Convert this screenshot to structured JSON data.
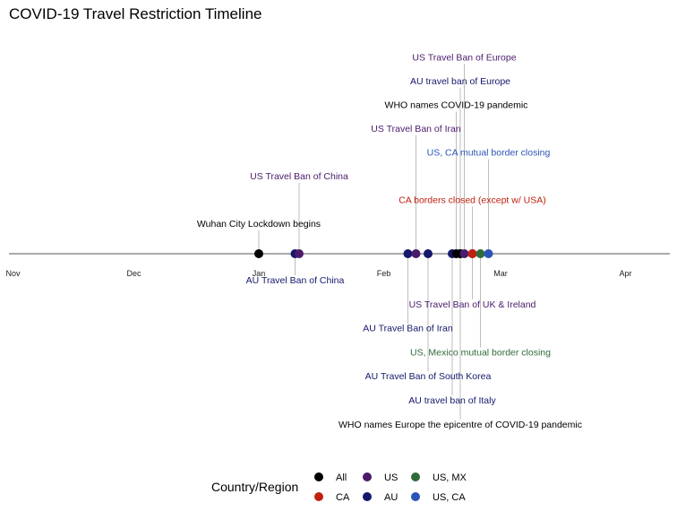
{
  "chart_data": {
    "type": "timeline",
    "title": "COVID-19 Travel Restriction Timeline",
    "x_range_days": [
      -62,
      102
    ],
    "ticks": [
      {
        "label": "Nov",
        "day": -61
      },
      {
        "label": "Dec",
        "day": -31
      },
      {
        "label": "Jan",
        "day": 0
      },
      {
        "label": "Feb",
        "day": 31
      },
      {
        "label": "Mar",
        "day": 60
      },
      {
        "label": "Apr",
        "day": 91
      }
    ],
    "groups": [
      {
        "key": "All",
        "color": "#000000"
      },
      {
        "key": "CA",
        "color": "#c0200f"
      },
      {
        "key": "US",
        "color": "#4b1a6b"
      },
      {
        "key": "AU",
        "color": "#15176b"
      },
      {
        "key": "US, MX",
        "color": "#316a3a"
      },
      {
        "key": "US, CA",
        "color": "#2b54b8"
      }
    ],
    "events": [
      {
        "label": "Wuhan City Lockdown begins",
        "day": 0,
        "group": "All",
        "level": 1
      },
      {
        "label": "US Travel Ban of China",
        "day": 10,
        "group": "US",
        "level": 3
      },
      {
        "label": "AU Travel Ban of China",
        "day": 9,
        "group": "AU",
        "level": -1
      },
      {
        "label": "US Travel Ban of Iran",
        "day": 39,
        "group": "US",
        "level": 5
      },
      {
        "label": "AU Travel Ban of Iran",
        "day": 37,
        "group": "AU",
        "level": -3
      },
      {
        "label": "AU Travel Ban of South Korea",
        "day": 42,
        "group": "AU",
        "level": -5
      },
      {
        "label": "AU travel ban of Italy",
        "day": 48,
        "group": "AU",
        "level": -6
      },
      {
        "label": "WHO names COVID-19 pandemic",
        "day": 49,
        "group": "All",
        "level": 6
      },
      {
        "label": "AU travel ban of Europe",
        "day": 50,
        "group": "AU",
        "level": 7
      },
      {
        "label": "US Travel Ban of Europe",
        "day": 51,
        "group": "US",
        "level": 8
      },
      {
        "label": "WHO names Europe the epicentre of COVID-19 pandemic",
        "day": 50,
        "group": "All",
        "level": -7
      },
      {
        "label": "US Travel Ban of UK & Ireland",
        "day": 53,
        "group": "US",
        "level": -2
      },
      {
        "label": "CA borders closed (except w/ USA)",
        "day": 53,
        "group": "CA",
        "level": 2
      },
      {
        "label": "US, Mexico mutual border closing",
        "day": 55,
        "group": "US, MX",
        "level": -4
      },
      {
        "label": "US, CA mutual border closing",
        "day": 57,
        "group": "US, CA",
        "level": 4
      }
    ],
    "legend": {
      "title": "Country/Region",
      "position": "bottom"
    }
  }
}
